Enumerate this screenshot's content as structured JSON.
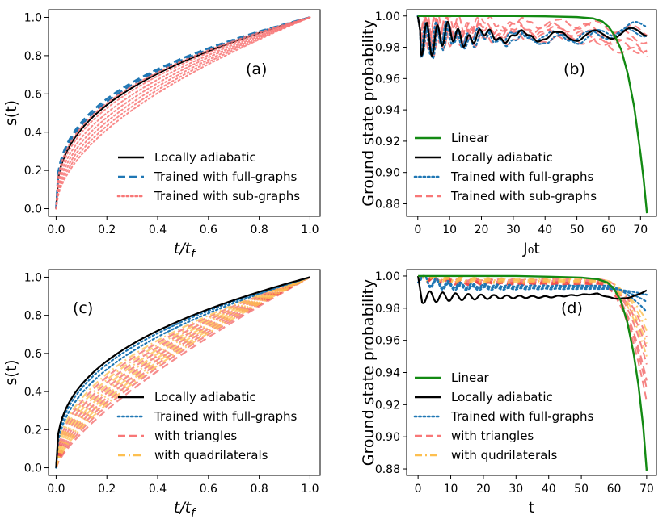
{
  "colors": {
    "black": "#000000",
    "blue": "#1f77b4",
    "blue_light": "#3a86c4",
    "pink": "#f87777",
    "red": "#ee3030",
    "orange": "#fdbf4f",
    "green": "#138a13"
  },
  "chart_data": [
    {
      "id": "a",
      "panel_label": "(a)",
      "type": "line",
      "xlabel": "t/t_f",
      "ylabel": "s(t)",
      "xlim": [
        -0.03,
        1.04
      ],
      "ylim": [
        -0.04,
        1.04
      ],
      "xticks": [
        0.0,
        0.2,
        0.4,
        0.6,
        0.8,
        1.0
      ],
      "xtick_labels": [
        "0.0",
        "0.2",
        "0.4",
        "0.6",
        "0.8",
        "1.0"
      ],
      "yticks": [
        0.0,
        0.2,
        0.4,
        0.6,
        0.8,
        1.0
      ],
      "ytick_labels": [
        "0.0",
        "0.2",
        "0.4",
        "0.6",
        "0.8",
        "1.0"
      ],
      "legend_position": "lower-right",
      "legend": [
        {
          "label": "Locally adiabatic",
          "color": "black",
          "style": "solid"
        },
        {
          "label": "Trained with full-graphs",
          "color": "blue",
          "style": "dashed"
        },
        {
          "label": "Trained with sub-graphs",
          "color": "pink",
          "style": "dotted"
        }
      ],
      "series": [
        {
          "name": "Locally adiabatic",
          "color": "black",
          "style": "solid",
          "curve": "power",
          "params": [
            0.38
          ],
          "width": 2.2
        },
        {
          "name": "Trained with full-graphs",
          "color": "blue",
          "style": "dashed",
          "curve": "power",
          "params": [
            0.345,
            0.36
          ],
          "width": 2.5
        },
        {
          "name": "Trained with sub-graphs",
          "color": "pink",
          "style": "dotted",
          "curve": "power",
          "params": [
            0.37,
            0.4,
            0.43,
            0.46,
            0.49,
            0.52,
            0.55
          ],
          "width": 2,
          "opacity": 0.85
        }
      ]
    },
    {
      "id": "b",
      "panel_label": "(b)",
      "type": "line",
      "xlabel": "J₀t",
      "ylabel": "Ground state probability",
      "xlim": [
        -3.5,
        75
      ],
      "ylim": [
        0.872,
        1.004
      ],
      "xticks": [
        0,
        10,
        20,
        30,
        40,
        50,
        60,
        70
      ],
      "xtick_labels": [
        "0",
        "10",
        "20",
        "30",
        "40",
        "50",
        "60",
        "70"
      ],
      "yticks": [
        0.88,
        0.9,
        0.92,
        0.94,
        0.96,
        0.98,
        1.0
      ],
      "ytick_labels": [
        "0.88",
        "0.90",
        "0.92",
        "0.94",
        "0.96",
        "0.98",
        "1.00"
      ],
      "legend_position": "lower-left",
      "legend": [
        {
          "label": "Linear",
          "color": "green",
          "style": "solid"
        },
        {
          "label": "Locally adiabatic",
          "color": "black",
          "style": "solid"
        },
        {
          "label": "Trained with full-graphs",
          "color": "blue",
          "style": "dotted"
        },
        {
          "label": "Trained with sub-graphs",
          "color": "pink",
          "style": "dashed"
        }
      ],
      "series": [
        {
          "name": "Trained with sub-graphs",
          "color": "pink",
          "style": "dashed",
          "width": 2,
          "opacity": 0.9,
          "t_end": 72,
          "osc": true,
          "variants": [
            [
              0.986,
              0.0,
              0.975
            ],
            [
              0.99,
              1.3,
              0.98
            ],
            [
              0.993,
              2.1,
              0.985
            ],
            [
              0.995,
              0.6,
              0.99
            ],
            [
              0.988,
              2.8,
              0.978
            ]
          ]
        },
        {
          "name": "Trained with full-graphs",
          "color": "blue",
          "style": "dotted",
          "width": 2.2,
          "t_end": 72,
          "osc": true,
          "variants": [
            [
              0.985,
              0.4,
              0.995
            ],
            [
              0.987,
              1.7,
              0.99
            ]
          ]
        },
        {
          "name": "Locally adiabatic",
          "color": "black",
          "style": "solid",
          "width": 2.2,
          "t_end": 72,
          "osc": true,
          "variants": [
            [
              0.987,
              0.9,
              0.99
            ]
          ]
        },
        {
          "name": "Linear",
          "color": "green",
          "style": "solid",
          "width": 2.4,
          "t_end": 72,
          "shape": "linear_decay",
          "points": [
            [
              0,
              1.0
            ],
            [
              10,
              1.0
            ],
            [
              20,
              1.0
            ],
            [
              30,
              1.0
            ],
            [
              40,
              0.9998
            ],
            [
              50,
              0.9993
            ],
            [
              55,
              0.9985
            ],
            [
              58,
              0.9965
            ],
            [
              60,
              0.993
            ],
            [
              62,
              0.987
            ],
            [
              64,
              0.978
            ],
            [
              66,
              0.963
            ],
            [
              68,
              0.942
            ],
            [
              70,
              0.912
            ],
            [
              71,
              0.895
            ],
            [
              72,
              0.874
            ]
          ]
        }
      ]
    },
    {
      "id": "c",
      "panel_label": "(c)",
      "type": "line",
      "xlabel": "t/t_f",
      "ylabel": "s(t)",
      "xlim": [
        -0.03,
        1.04
      ],
      "ylim": [
        -0.04,
        1.04
      ],
      "xticks": [
        0.0,
        0.2,
        0.4,
        0.6,
        0.8,
        1.0
      ],
      "xtick_labels": [
        "0.0",
        "0.2",
        "0.4",
        "0.6",
        "0.8",
        "1.0"
      ],
      "yticks": [
        0.0,
        0.2,
        0.4,
        0.6,
        0.8,
        1.0
      ],
      "ytick_labels": [
        "0.0",
        "0.2",
        "0.4",
        "0.6",
        "0.8",
        "1.0"
      ],
      "legend_position": "lower-right",
      "legend": [
        {
          "label": "Locally adiabatic",
          "color": "black",
          "style": "solid"
        },
        {
          "label": "Trained with full-graphs",
          "color": "blue",
          "style": "dotted"
        },
        {
          "label": "with triangles",
          "color": "pink",
          "style": "dashed"
        },
        {
          "label": "with quadrilaterals",
          "color": "orange",
          "style": "dashdot"
        }
      ],
      "series": [
        {
          "name": "with triangles",
          "color": "red",
          "style": "dashed",
          "curve": "power",
          "params": [
            0.46,
            0.5,
            0.54,
            0.58,
            0.62,
            0.66,
            0.7,
            0.74
          ],
          "width": 2.2,
          "opacity": 0.55
        },
        {
          "name": "with quadrilaterals",
          "color": "orange",
          "style": "dashdot",
          "curve": "power",
          "params": [
            0.44,
            0.48,
            0.52,
            0.56,
            0.6,
            0.64,
            0.68
          ],
          "width": 2.2,
          "opacity": 0.75
        },
        {
          "name": "Trained with full-graphs",
          "color": "blue",
          "style": "dotted",
          "curve": "power",
          "params": [
            0.38,
            0.41
          ],
          "width": 2.2
        },
        {
          "name": "Locally adiabatic",
          "color": "black",
          "style": "solid",
          "curve": "power",
          "params": [
            0.36
          ],
          "width": 2.2
        }
      ]
    },
    {
      "id": "d",
      "panel_label": "(d)",
      "type": "line",
      "xlabel": "t",
      "ylabel": "Ground state probability",
      "xlim": [
        -3.5,
        73
      ],
      "ylim": [
        0.876,
        1.004
      ],
      "xticks": [
        0,
        10,
        20,
        30,
        40,
        50,
        60,
        70
      ],
      "xtick_labels": [
        "0",
        "10",
        "20",
        "30",
        "40",
        "50",
        "60",
        "70"
      ],
      "yticks": [
        0.88,
        0.9,
        0.92,
        0.94,
        0.96,
        0.98,
        1.0
      ],
      "ytick_labels": [
        "0.88",
        "0.90",
        "0.92",
        "0.94",
        "0.96",
        "0.98",
        "1.00"
      ],
      "legend_position": "lower-left",
      "legend": [
        {
          "label": "Linear",
          "color": "green",
          "style": "solid"
        },
        {
          "label": "Locally adiabatic",
          "color": "black",
          "style": "solid"
        },
        {
          "label": "Trained with full-graphs",
          "color": "blue",
          "style": "dotted"
        },
        {
          "label": "with triangles",
          "color": "pink",
          "style": "dashed"
        },
        {
          "label": "with qudrilaterals",
          "color": "orange",
          "style": "dashdot"
        }
      ],
      "series": [
        {
          "name": "with triangles",
          "color": "red",
          "style": "dashed",
          "width": 2,
          "opacity": 0.6,
          "t_end": 70,
          "shape": "late_drop",
          "variants": [
            [
              0.995,
              0.922
            ],
            [
              0.996,
              0.935
            ],
            [
              0.997,
              0.945
            ],
            [
              0.996,
              0.955
            ],
            [
              0.998,
              0.962
            ],
            [
              0.995,
              0.93
            ]
          ]
        },
        {
          "name": "with qudrilaterals",
          "color": "orange",
          "style": "dashdot",
          "width": 2,
          "opacity": 0.8,
          "t_end": 70,
          "shape": "late_drop",
          "variants": [
            [
              0.997,
              0.958
            ],
            [
              0.998,
              0.966
            ],
            [
              0.996,
              0.972
            ],
            [
              0.997,
              0.95
            ]
          ]
        },
        {
          "name": "Trained with full-graphs",
          "color": "blue",
          "style": "dotted",
          "width": 2.2,
          "t_end": 70,
          "shape": "plateau",
          "variants": [
            [
              0.992,
              0.988
            ],
            [
              0.994,
              0.976
            ],
            [
              0.993,
              0.983
            ]
          ]
        },
        {
          "name": "Locally adiabatic",
          "color": "black",
          "style": "solid",
          "width": 2.2,
          "t_end": 70,
          "shape": "locally",
          "variants": [
            [
              0.988,
              0.988
            ]
          ]
        },
        {
          "name": "Linear",
          "color": "green",
          "style": "solid",
          "width": 2.4,
          "t_end": 70,
          "shape": "linear_decay",
          "points": [
            [
              0,
              1.0
            ],
            [
              10,
              1.0
            ],
            [
              20,
              1.0
            ],
            [
              30,
              1.0
            ],
            [
              40,
              0.9996
            ],
            [
              50,
              0.999
            ],
            [
              55,
              0.998
            ],
            [
              58,
              0.996
            ],
            [
              60,
              0.992
            ],
            [
              62,
              0.985
            ],
            [
              64,
              0.972
            ],
            [
              66,
              0.952
            ],
            [
              67.5,
              0.932
            ],
            [
              69,
              0.905
            ],
            [
              70,
              0.879
            ]
          ]
        }
      ]
    }
  ]
}
